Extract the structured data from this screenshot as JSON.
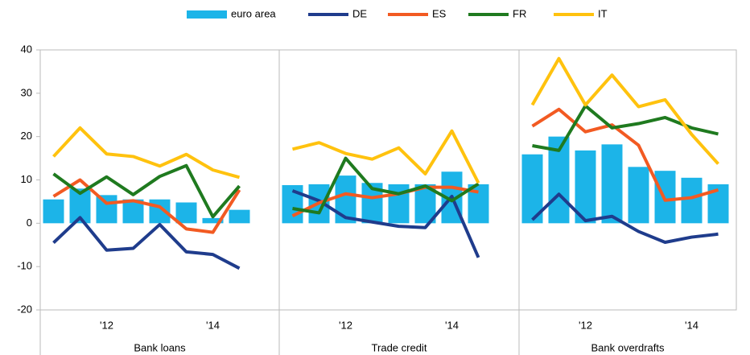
{
  "chart_data": [
    {
      "type": "bar",
      "xlabel": "Bank loans",
      "categories": [
        null,
        null,
        "'12",
        null,
        null,
        null,
        "'14",
        null
      ],
      "ylim": [
        -20,
        40
      ],
      "yticks": [
        -20,
        -10,
        0,
        10,
        20,
        30,
        40
      ],
      "series": [
        {
          "name": "euro area",
          "color": "#1cb4e8",
          "type": "bar",
          "values": [
            5.5,
            8,
            6.5,
            5.5,
            5.5,
            4.8,
            1.2,
            3.1
          ]
        },
        {
          "name": "DE",
          "color": "#1f3c8c",
          "type": "line",
          "values": [
            -4.5,
            1.3,
            -6.2,
            -5.8,
            -0.3,
            -6.6,
            -7.2,
            -10.4
          ]
        },
        {
          "name": "ES",
          "color": "#f25a22",
          "type": "line",
          "values": [
            6.2,
            10,
            4.6,
            5.2,
            3.8,
            -1.3,
            -2.1,
            7.7
          ]
        },
        {
          "name": "FR",
          "color": "#1f7a1f",
          "type": "line",
          "values": [
            11.4,
            6.9,
            10.7,
            6.6,
            10.8,
            13.3,
            1.5,
            8.6
          ]
        },
        {
          "name": "IT",
          "color": "#ffc20e",
          "type": "line",
          "values": [
            15.4,
            22,
            16,
            15.4,
            13.2,
            15.9,
            12.3,
            10.6
          ]
        }
      ]
    },
    {
      "type": "bar",
      "xlabel": "Trade credit",
      "categories": [
        null,
        null,
        "'12",
        null,
        null,
        null,
        "'14",
        null
      ],
      "ylim": [
        -20,
        40
      ],
      "series": [
        {
          "name": "euro area",
          "color": "#1cb4e8",
          "type": "bar",
          "values": [
            8.8,
            9,
            11,
            9.3,
            9,
            9,
            11.9,
            9
          ]
        },
        {
          "name": "DE",
          "color": "#1f3c8c",
          "type": "line",
          "values": [
            7.5,
            5.2,
            1.3,
            0.3,
            -0.7,
            -1,
            6.2,
            -7.9
          ]
        },
        {
          "name": "ES",
          "color": "#f25a22",
          "type": "line",
          "values": [
            1.7,
            4.7,
            6.8,
            5.9,
            6.8,
            8.3,
            8.3,
            7.2
          ]
        },
        {
          "name": "FR",
          "color": "#1f7a1f",
          "type": "line",
          "values": [
            3.4,
            2.4,
            15,
            8,
            6.8,
            8.6,
            5.2,
            9.1
          ]
        },
        {
          "name": "IT",
          "color": "#ffc20e",
          "type": "line",
          "values": [
            17.1,
            18.6,
            16.1,
            14.8,
            17.4,
            11.4,
            21.3,
            9.3
          ]
        }
      ]
    },
    {
      "type": "bar",
      "xlabel": "Bank overdrafts",
      "categories": [
        null,
        null,
        "'12",
        null,
        null,
        null,
        "'14",
        null
      ],
      "ylim": [
        -20,
        40
      ],
      "series": [
        {
          "name": "euro area",
          "color": "#1cb4e8",
          "type": "bar",
          "values": [
            15.9,
            20,
            16.8,
            18.2,
            13,
            12.1,
            10.5,
            9
          ]
        },
        {
          "name": "DE",
          "color": "#1f3c8c",
          "type": "line",
          "values": [
            0.8,
            6.7,
            0.6,
            1.6,
            -1.9,
            -4.4,
            -3.2,
            -2.5
          ]
        },
        {
          "name": "ES",
          "color": "#f25a22",
          "type": "line",
          "values": [
            22.4,
            26.3,
            21.1,
            22.7,
            18,
            5.3,
            5.9,
            7.7
          ]
        },
        {
          "name": "FR",
          "color": "#1f7a1f",
          "type": "line",
          "values": [
            17.9,
            16.8,
            27.1,
            22,
            23,
            24.4,
            22,
            20.6
          ]
        },
        {
          "name": "IT",
          "color": "#ffc20e",
          "type": "line",
          "values": [
            27.3,
            38,
            27.3,
            34.2,
            26.9,
            28.5,
            20.5,
            13.7
          ]
        }
      ]
    }
  ]
}
